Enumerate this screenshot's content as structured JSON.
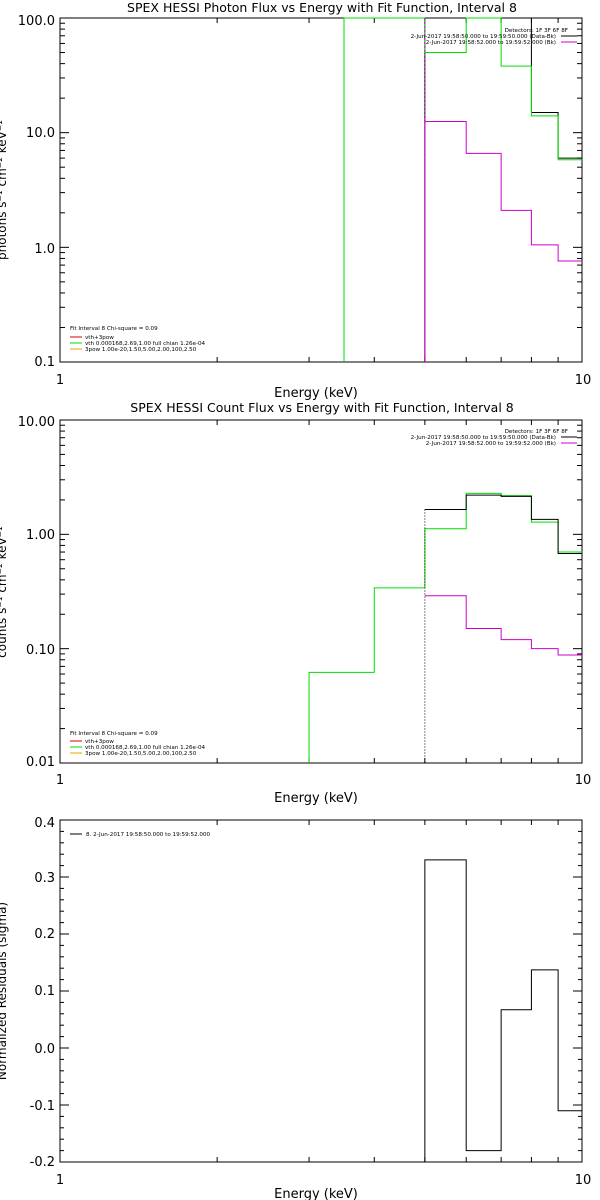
{
  "colors": {
    "black": "#000000",
    "green": "#00dd00",
    "magenta": "#cc00cc",
    "orange": "#e8a000",
    "red": "#dd0000"
  },
  "chart_data": [
    {
      "type": "line",
      "step": true,
      "title": "SPEX HESSI Photon Flux vs Energy with Fit Function, Interval 8",
      "xlabel": "Energy (keV)",
      "ylabel": "photons s⁻¹ cm⁻² keV⁻¹",
      "xscale": "log",
      "yscale": "log",
      "xlim": [
        1,
        10
      ],
      "ylim": [
        0.1,
        100
      ],
      "xticks": [
        "1",
        "10"
      ],
      "yticks": [
        "0.1",
        "1.0",
        "10.0",
        "100.0"
      ],
      "legend_top_right": [
        "Detectors: 1F 3F 6F 8F",
        "2-Jun-2017 19:58:50.000 to 19:59:50.000 (Data-Bk)",
        "2-Jun-2017 19:58:52.000 to 19:59:52.000 (Bk)"
      ],
      "legend_bottom_left": [
        "Fit Interval 8   Chi-square = 0.09",
        "vth+3pow",
        "vth 0.000168,2.69,1.00   full chian 1.26e-04",
        "3pow 1.00e-20,1.50,5.00,2.00,100,2.50"
      ],
      "edges": [
        3.5,
        5.0,
        6.0,
        7.0,
        8.0,
        9.0,
        10.0
      ],
      "series": [
        {
          "key": "data_minus_bk",
          "color": "black",
          "values": [
            100,
            100,
            100,
            100,
            15,
            6
          ]
        },
        {
          "key": "bk",
          "color": "magenta",
          "values": [
            0.0,
            12.5,
            6.6,
            2.1,
            1.05,
            0.76
          ]
        },
        {
          "key": "model",
          "color": "green",
          "values": [
            100,
            50,
            100,
            38,
            14,
            5.8
          ]
        }
      ],
      "drop_x": 5.0
    },
    {
      "type": "line",
      "step": true,
      "title": "SPEX HESSI Count Flux vs Energy with Fit Function, Interval 8",
      "xlabel": "Energy (keV)",
      "ylabel": "counts s⁻¹ cm⁻² keV⁻¹",
      "xscale": "log",
      "yscale": "log",
      "xlim": [
        1,
        10
      ],
      "ylim": [
        0.01,
        10
      ],
      "xticks": [
        "1",
        "10"
      ],
      "yticks": [
        "0.01",
        "0.10",
        "1.00",
        "10.00"
      ],
      "legend_top_right": [
        "Detectors: 1F 3F 6F 8F",
        "2-Jun-2017 19:58:50.000 to 19:59:50.000 (Data-Bk)",
        "2-Jun-2017 19:58:52.000 to 19:59:52.000 (Bk)"
      ],
      "legend_bottom_left": [
        "Fit Interval 8   Chi-square = 0.09",
        "vth+3pow",
        "vth 0.000168,2.69,1.00   full chian 1.26e-04",
        "3pow 1.00e-20,1.50,5.00,2.00,100,2.50"
      ],
      "edges_model": [
        3.0,
        4.0,
        5.0,
        6.0,
        7.0,
        8.0,
        9.0,
        10.0
      ],
      "edges": [
        5.0,
        6.0,
        7.0,
        8.0,
        9.0,
        10.0
      ],
      "series": [
        {
          "key": "data_minus_bk",
          "color": "black",
          "values": [
            1.65,
            2.2,
            2.15,
            1.35,
            0.68
          ]
        },
        {
          "key": "bk",
          "color": "magenta",
          "values": [
            0.29,
            0.15,
            0.12,
            0.1,
            0.088
          ]
        },
        {
          "key": "model",
          "color": "green",
          "values": [
            0.062,
            0.34,
            1.12,
            2.28,
            2.18,
            1.28,
            0.7
          ]
        }
      ],
      "drop_x": 5.0
    },
    {
      "type": "line",
      "step": true,
      "title": "",
      "xlabel": "Energy (keV)",
      "ylabel": "Normalized Residuals (sigma)",
      "xscale": "log",
      "yscale": "linear",
      "xlim": [
        1,
        10
      ],
      "ylim": [
        -0.2,
        0.4
      ],
      "xticks": [
        "1",
        "10"
      ],
      "yticks": [
        "-0.2",
        "-0.1",
        "0.0",
        "0.1",
        "0.2",
        "0.3",
        "0.4"
      ],
      "legend_top_left": [
        "8.  2-Jun-2017 19:58:50.000 to 19:59:52.000"
      ],
      "edges": [
        5.0,
        6.0,
        7.0,
        8.0,
        9.0,
        10.0
      ],
      "series": [
        {
          "key": "residuals",
          "color": "black",
          "values": [
            0.33,
            -0.18,
            0.067,
            0.137,
            -0.11
          ]
        }
      ]
    }
  ]
}
